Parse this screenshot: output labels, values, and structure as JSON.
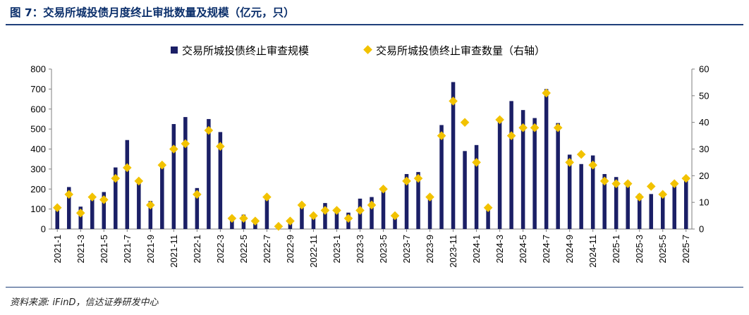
{
  "figure": {
    "title": "图 7：交易所城投债月度终止审批数量及规模（亿元，只）",
    "source": "资料来源: iFinD，信达证券研发中心"
  },
  "colors": {
    "bar": "#1b1f66",
    "marker": "#f2c200",
    "axis": "#7f7f7f",
    "text": "#000000",
    "title": "#0b2f6b"
  },
  "chart_data": {
    "type": "bar",
    "categories": [
      "2021-1",
      "2021-2",
      "2021-3",
      "2021-4",
      "2021-5",
      "2021-6",
      "2021-7",
      "2021-8",
      "2021-9",
      "2021-10",
      "2021-11",
      "2021-12",
      "2022-1",
      "2022-2",
      "2022-3",
      "2022-4",
      "2022-5",
      "2022-6",
      "2022-7",
      "2022-8",
      "2022-9",
      "2022-10",
      "2022-11",
      "2022-12",
      "2023-1",
      "2023-2",
      "2023-3",
      "2023-4",
      "2023-5",
      "2023-6",
      "2023-7",
      "2023-8",
      "2023-9",
      "2023-10",
      "2023-11",
      "2023-12",
      "2024-1",
      "2024-2",
      "2024-3",
      "2024-4",
      "2024-5",
      "2024-6",
      "2024-7",
      "2024-8",
      "2024-9",
      "2024-10",
      "2024-11",
      "2024-12",
      "2025-1",
      "2025-2",
      "2025-3",
      "2025-4",
      "2025-5",
      "2025-6",
      "2025-7"
    ],
    "x_tick_labels": [
      "2021-1",
      "2021-3",
      "2021-5",
      "2021-7",
      "2021-9",
      "2021-11",
      "2022-1",
      "2022-3",
      "2022-5",
      "2022-7",
      "2022-9",
      "2022-11",
      "2023-1",
      "2023-3",
      "2023-5",
      "2023-7",
      "2023-9",
      "2023-11",
      "2024-1",
      "2024-3",
      "2024-5",
      "2024-7",
      "2024-9",
      "2024-11",
      "2025-1",
      "2025-3",
      "2025-5",
      "2025-7"
    ],
    "series": [
      {
        "name": "交易所城投债终止审查规模",
        "type": "bar",
        "axis": "left",
        "values": [
          100,
          210,
          112,
          158,
          185,
          308,
          445,
          245,
          140,
          325,
          525,
          560,
          205,
          550,
          485,
          52,
          72,
          45,
          150,
          8,
          28,
          110,
          65,
          130,
          90,
          82,
          152,
          160,
          210,
          60,
          275,
          285,
          160,
          520,
          735,
          390,
          420,
          95,
          545,
          640,
          595,
          555,
          700,
          530,
          372,
          325,
          368,
          275,
          260,
          240,
          175,
          175,
          180,
          235,
          250
        ]
      },
      {
        "name": "交易所城投债终止审查数量（右轴）",
        "type": "scatter",
        "axis": "right",
        "values": [
          8,
          13,
          6,
          12,
          11,
          19,
          23,
          18,
          9,
          24,
          30,
          32,
          13,
          37,
          31,
          4,
          4,
          3,
          12,
          1,
          3,
          9,
          5,
          7,
          7,
          4,
          7,
          9,
          15,
          5,
          18,
          19,
          12,
          35,
          48,
          40,
          25,
          8,
          41,
          35,
          38,
          38,
          51,
          38,
          25,
          28,
          24,
          18,
          17,
          17,
          12,
          16,
          13,
          17,
          19
        ]
      }
    ],
    "y_left": {
      "min": 0,
      "max": 800,
      "ticks": [
        0,
        100,
        200,
        300,
        400,
        500,
        600,
        700,
        800
      ]
    },
    "y_right": {
      "min": 0,
      "max": 60,
      "ticks": [
        0,
        10,
        20,
        30,
        40,
        50,
        60
      ]
    },
    "legend_position": "top-center",
    "grid": false
  }
}
